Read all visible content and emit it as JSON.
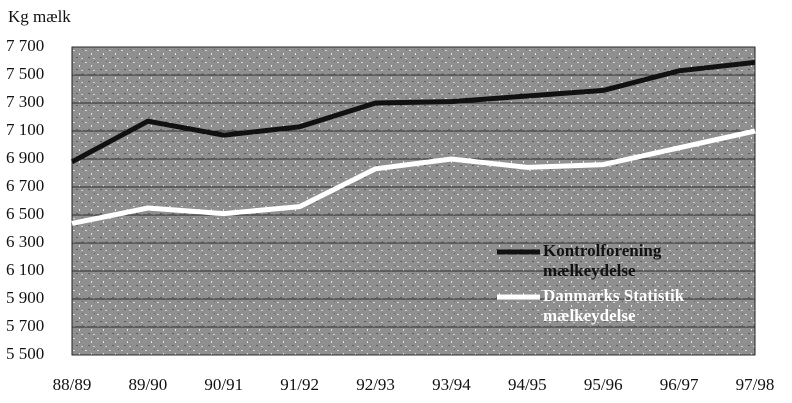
{
  "chart_data": {
    "type": "line",
    "ylabel": "Kg mælk",
    "categories": [
      "88/89",
      "89/90",
      "90/91",
      "91/92",
      "92/93",
      "93/94",
      "94/95",
      "95/96",
      "96/97",
      "97/98"
    ],
    "series": [
      {
        "name": "Kontrolforening mælkeydelse",
        "color": "#111111",
        "values": [
          6880,
          7170,
          7070,
          7130,
          7300,
          7310,
          7350,
          7390,
          7530,
          7590
        ]
      },
      {
        "name": "Danmarks Statistik mælkeydelse",
        "color": "#ffffff",
        "values": [
          6440,
          6550,
          6510,
          6560,
          6830,
          6900,
          6840,
          6860,
          6980,
          7100
        ]
      }
    ],
    "ylim": [
      5500,
      7700
    ],
    "yticks": [
      {
        "value": 5500,
        "label": "5 500"
      },
      {
        "value": 5700,
        "label": "5 700"
      },
      {
        "value": 5900,
        "label": "5 900"
      },
      {
        "value": 6100,
        "label": "6 100"
      },
      {
        "value": 6300,
        "label": "6 300"
      },
      {
        "value": 6500,
        "label": "6 500"
      },
      {
        "value": 6700,
        "label": "6 700"
      },
      {
        "value": 6900,
        "label": "6 900"
      },
      {
        "value": 7100,
        "label": "7 100"
      },
      {
        "value": 7300,
        "label": "7 300"
      },
      {
        "value": 7500,
        "label": "7 500"
      },
      {
        "value": 7700,
        "label": "7 700"
      }
    ],
    "grid": true
  }
}
